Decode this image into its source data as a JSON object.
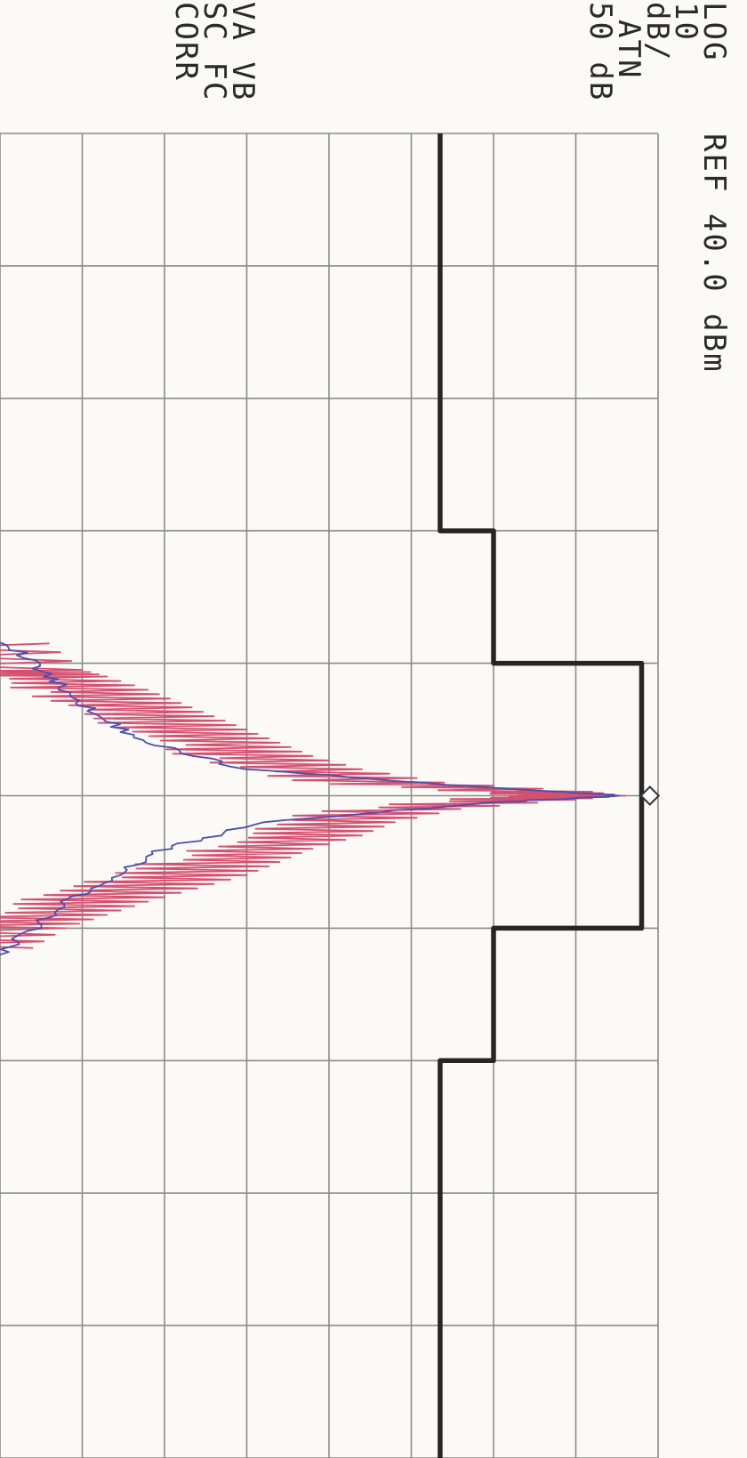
{
  "header": {
    "ref_label": "REF 40.0 dBm",
    "settings": [
      "LOG",
      "10",
      "dB/",
      "ATN",
      "50 dB"
    ],
    "flags": [
      "VA VB",
      "SC FC",
      "CORR"
    ]
  },
  "colors": {
    "mask": "#2b2325",
    "trace_red": "#d4506f",
    "trace_blue": "#4a4fb0",
    "grid": "#8d8b86",
    "paper": "#fbfaf7"
  },
  "chart_data": {
    "type": "line",
    "title": "",
    "xlabel": "",
    "ylabel": "",
    "reference_level_dbm": 40.0,
    "scale_db_per_div": 10,
    "attenuation_db": 50,
    "grid": true,
    "x_divisions": 10,
    "y_divisions": 8,
    "xlim": [
      0,
      10
    ],
    "ylim": [
      -40,
      40
    ],
    "marker": {
      "x": 5.0,
      "y": 39.0,
      "symbol": "diamond"
    },
    "series": [
      {
        "role": "mask",
        "color": "#2b2325",
        "x": [
          0.0,
          3.0,
          3.0,
          4.0,
          4.0,
          6.0,
          6.0,
          7.0,
          7.0,
          10.0
        ],
        "y": [
          13.5,
          13.5,
          20.0,
          20.0,
          38.0,
          38.0,
          20.0,
          20.0,
          13.5,
          13.5
        ]
      },
      {
        "role": "red-trace",
        "color": "#d4506f",
        "x": [
          3.85,
          4.05,
          4.1,
          4.2,
          4.3,
          4.4,
          4.5,
          4.6,
          4.7,
          4.8,
          4.9,
          4.97,
          5.0,
          5.03,
          5.1,
          5.2,
          5.3,
          5.4,
          5.5,
          5.6,
          5.7,
          5.8,
          5.9,
          6.0,
          6.15
        ],
        "y": [
          -34,
          -30,
          -27,
          -22,
          -18,
          -14,
          -10,
          -6,
          -2,
          4,
          14,
          32,
          36,
          30,
          16,
          8,
          4,
          -2,
          -6,
          -10,
          -16,
          -22,
          -27,
          -32,
          -36
        ]
      },
      {
        "role": "blue-trace",
        "color": "#4a4fb0",
        "x": [
          3.8,
          4.0,
          4.2,
          4.4,
          4.6,
          4.8,
          4.95,
          5.0,
          5.05,
          5.2,
          5.4,
          5.6,
          5.8,
          6.0,
          6.2
        ],
        "y": [
          -40,
          -36,
          -32,
          -28,
          -22,
          -10,
          22,
          36,
          20,
          -8,
          -20,
          -26,
          -32,
          -36,
          -40
        ]
      }
    ]
  }
}
